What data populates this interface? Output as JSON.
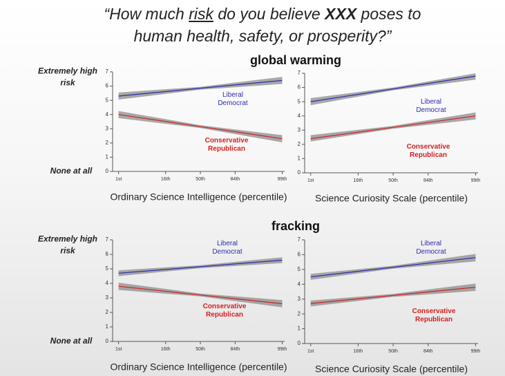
{
  "slide": {
    "question_parts": [
      "“How much ",
      "risk",
      " do you believe ",
      "XXX",
      " poses to",
      "human health, safety, or prosperity?”"
    ],
    "sections": [
      "global warming",
      "fracking"
    ],
    "y_label_top": "Extremely high\nrisk",
    "y_label_bottom": "None at all"
  },
  "chart_data": [
    {
      "type": "line",
      "xlabel": "Ordinary Science Intelligence (percentile)",
      "x": [
        -2.33,
        0,
        2.33
      ],
      "xlim": [
        -2.5,
        2.4
      ],
      "xticks": [
        {
          "value": -2.33,
          "label": "1st"
        },
        {
          "value": -0.99,
          "label": "16th"
        },
        {
          "value": 0,
          "label": "50th"
        },
        {
          "value": 0.99,
          "label": "84th"
        },
        {
          "value": 2.33,
          "label": "99th"
        }
      ],
      "ylim": [
        0,
        7
      ],
      "yticks": [
        0,
        1,
        2,
        3,
        4,
        5,
        6,
        7
      ],
      "series": [
        {
          "name": "Liberal\nDemocrat",
          "color": "#2b2bb0",
          "values": [
            5.3,
            5.85,
            6.4
          ],
          "lower": [
            5.05,
            5.75,
            6.15
          ],
          "upper": [
            5.55,
            5.95,
            6.65
          ]
        },
        {
          "name": "Conservative\nRepublican",
          "color": "#d42020",
          "values": [
            4.0,
            3.15,
            2.3
          ],
          "lower": [
            3.75,
            3.05,
            2.05
          ],
          "upper": [
            4.25,
            3.25,
            2.55
          ]
        }
      ]
    },
    {
      "type": "line",
      "xlabel": "Science Curiosity Scale (percentile)",
      "x": [
        -2.33,
        0,
        2.33
      ],
      "xlim": [
        -2.5,
        2.4
      ],
      "xticks": [
        {
          "value": -2.33,
          "label": "1st"
        },
        {
          "value": -0.99,
          "label": "16th"
        },
        {
          "value": 0,
          "label": "50th"
        },
        {
          "value": 0.99,
          "label": "84th"
        },
        {
          "value": 2.33,
          "label": "99th"
        }
      ],
      "ylim": [
        0,
        7
      ],
      "yticks": [
        0,
        1,
        2,
        3,
        4,
        5,
        6,
        7
      ],
      "series": [
        {
          "name": "Liberal\nDemocrat",
          "color": "#2b2bb0",
          "values": [
            5.0,
            5.9,
            6.8
          ],
          "lower": [
            4.75,
            5.8,
            6.55
          ],
          "upper": [
            5.25,
            6.0,
            7.0
          ]
        },
        {
          "name": "Conservative\nRepublican",
          "color": "#d42020",
          "values": [
            2.4,
            3.2,
            4.0
          ],
          "lower": [
            2.2,
            3.1,
            3.75
          ],
          "upper": [
            2.65,
            3.3,
            4.25
          ]
        }
      ]
    },
    {
      "type": "line",
      "xlabel": "Ordinary Science Intelligence (percentile)",
      "x": [
        -2.33,
        0,
        2.33
      ],
      "xlim": [
        -2.5,
        2.4
      ],
      "xticks": [
        {
          "value": -2.33,
          "label": "1st"
        },
        {
          "value": -0.99,
          "label": "16th"
        },
        {
          "value": 0,
          "label": "50th"
        },
        {
          "value": 0.99,
          "label": "84th"
        },
        {
          "value": 2.33,
          "label": "99th"
        }
      ],
      "ylim": [
        0,
        7
      ],
      "yticks": [
        0,
        1,
        2,
        3,
        4,
        5,
        6,
        7
      ],
      "series": [
        {
          "name": "Liberal\nDemocrat",
          "color": "#2b2bb0",
          "values": [
            4.7,
            5.15,
            5.6
          ],
          "lower": [
            4.5,
            5.05,
            5.4
          ],
          "upper": [
            4.9,
            5.25,
            5.8
          ]
        },
        {
          "name": "Conservative\nRepublican",
          "color": "#d42020",
          "values": [
            3.8,
            3.2,
            2.6
          ],
          "lower": [
            3.55,
            3.1,
            2.35
          ],
          "upper": [
            4.05,
            3.3,
            2.85
          ]
        }
      ]
    },
    {
      "type": "line",
      "xlabel": "Science Curiosity Scale (percentile)",
      "x": [
        -2.33,
        0,
        2.33
      ],
      "xlim": [
        -2.5,
        2.4
      ],
      "xticks": [
        {
          "value": -2.33,
          "label": "1st"
        },
        {
          "value": -0.99,
          "label": "16th"
        },
        {
          "value": 0,
          "label": "50th"
        },
        {
          "value": 0.99,
          "label": "84th"
        },
        {
          "value": 2.33,
          "label": "99th"
        }
      ],
      "ylim": [
        0,
        7
      ],
      "yticks": [
        0,
        1,
        2,
        3,
        4,
        5,
        6,
        7
      ],
      "series": [
        {
          "name": "Liberal\nDemocrat",
          "color": "#2b2bb0",
          "values": [
            4.5,
            5.15,
            5.8
          ],
          "lower": [
            4.3,
            5.05,
            5.55
          ],
          "upper": [
            4.7,
            5.25,
            6.05
          ]
        },
        {
          "name": "Conservative\nRepublican",
          "color": "#d42020",
          "values": [
            2.7,
            3.25,
            3.8
          ],
          "lower": [
            2.5,
            3.15,
            3.55
          ],
          "upper": [
            2.9,
            3.35,
            4.05
          ]
        }
      ]
    }
  ]
}
